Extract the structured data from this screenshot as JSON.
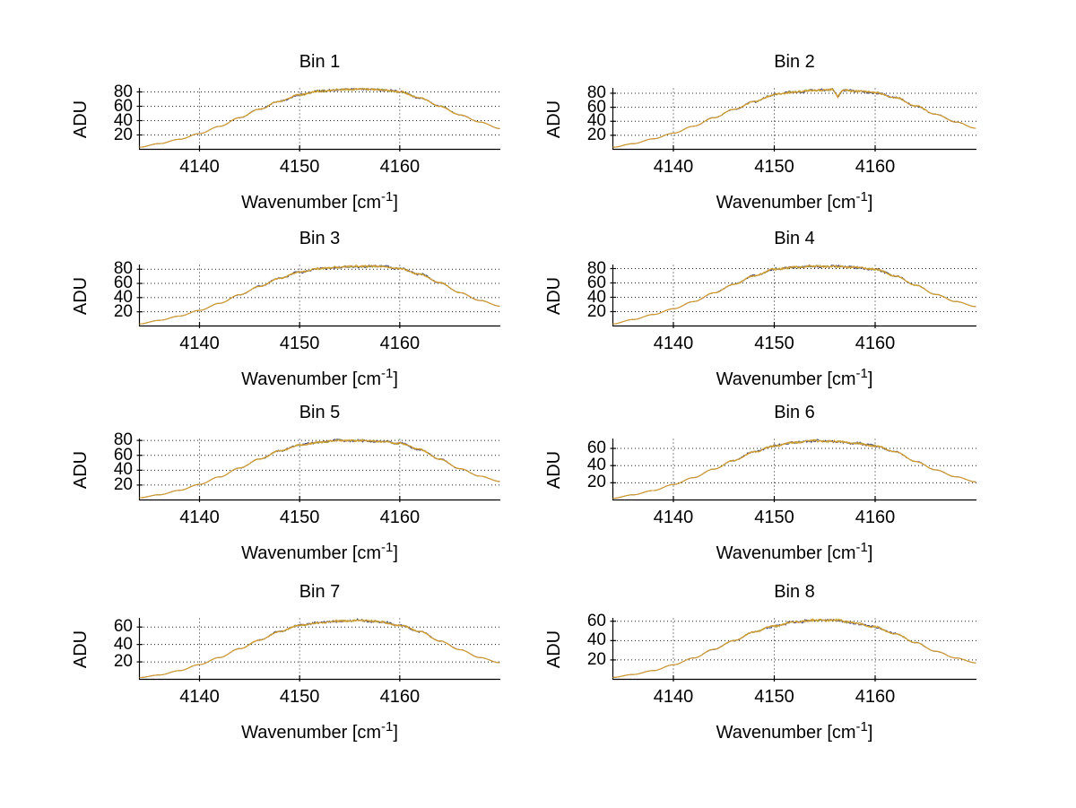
{
  "figure": {
    "background": "#ffffff",
    "axis_color": "#000000",
    "grid_color": "#1c1c1c",
    "text_color": "#000000",
    "series_colors": {
      "dark": "#3c3c78",
      "olive": "#b3a93a",
      "orange": "#d7992c"
    },
    "ylabel": "ADU",
    "xlabel_parts": {
      "pre": "Wavenumber [cm",
      "sup": "-1",
      "post": "]"
    }
  },
  "chart_data": [
    {
      "type": "line",
      "title": "Bin 1",
      "xlabel": "Wavenumber [cm^-1]",
      "ylabel": "ADU",
      "xlim": [
        4134,
        4170
      ],
      "ylim": [
        0,
        85
      ],
      "x_ticks": [
        4140,
        4150,
        4160
      ],
      "y_ticks": [
        20,
        40,
        60,
        80
      ],
      "grid": true,
      "x": [
        4134,
        4136,
        4138,
        4140,
        4142,
        4144,
        4146,
        4148,
        4150,
        4152,
        4154,
        4156,
        4158,
        4160,
        4162,
        4164,
        4166,
        4168,
        4170
      ],
      "y": [
        3,
        8,
        14,
        22,
        32,
        44,
        56,
        67,
        76,
        81,
        83,
        84,
        83,
        80,
        72,
        60,
        48,
        38,
        29
      ],
      "noise_amplitude": 1.6
    },
    {
      "type": "line",
      "title": "Bin 2",
      "xlabel": "Wavenumber [cm^-1]",
      "ylabel": "ADU",
      "xlim": [
        4134,
        4170
      ],
      "ylim": [
        0,
        87
      ],
      "x_ticks": [
        4140,
        4150,
        4160
      ],
      "y_ticks": [
        20,
        40,
        60,
        80
      ],
      "grid": true,
      "x": [
        4134,
        4136,
        4138,
        4140,
        4142,
        4144,
        4146,
        4148,
        4150,
        4152,
        4154,
        4156,
        4158,
        4160,
        4162,
        4164,
        4166,
        4168,
        4170
      ],
      "y": [
        3,
        8,
        15,
        23,
        33,
        45,
        57,
        68,
        78,
        82,
        84,
        85,
        83,
        81,
        74,
        62,
        50,
        39,
        30
      ],
      "spike": {
        "x": 4156.3,
        "depth": 10,
        "width": 0.5
      },
      "noise_amplitude": 1.7
    },
    {
      "type": "line",
      "title": "Bin 3",
      "xlabel": "Wavenumber [cm^-1]",
      "ylabel": "ADU",
      "xlim": [
        4134,
        4170
      ],
      "ylim": [
        0,
        86
      ],
      "x_ticks": [
        4140,
        4150,
        4160
      ],
      "y_ticks": [
        20,
        40,
        60,
        80
      ],
      "grid": true,
      "x": [
        4134,
        4136,
        4138,
        4140,
        4142,
        4144,
        4146,
        4148,
        4150,
        4152,
        4154,
        4156,
        4158,
        4160,
        4162,
        4164,
        4166,
        4168,
        4170
      ],
      "y": [
        3,
        8,
        14,
        22,
        32,
        44,
        56,
        67,
        76,
        81,
        83,
        84,
        84,
        81,
        73,
        61,
        47,
        36,
        28
      ],
      "noise_amplitude": 1.6
    },
    {
      "type": "line",
      "title": "Bin 4",
      "xlabel": "Wavenumber [cm^-1]",
      "ylabel": "ADU",
      "xlim": [
        4134,
        4170
      ],
      "ylim": [
        0,
        85
      ],
      "x_ticks": [
        4140,
        4150,
        4160
      ],
      "y_ticks": [
        20,
        40,
        60,
        80
      ],
      "grid": true,
      "x": [
        4134,
        4136,
        4138,
        4140,
        4142,
        4144,
        4146,
        4148,
        4150,
        4152,
        4154,
        4156,
        4158,
        4160,
        4162,
        4164,
        4166,
        4168,
        4170
      ],
      "y": [
        3,
        9,
        16,
        24,
        34,
        46,
        58,
        70,
        79,
        82,
        83,
        83,
        82,
        79,
        70,
        57,
        44,
        34,
        27
      ],
      "noise_amplitude": 1.6
    },
    {
      "type": "line",
      "title": "Bin 5",
      "xlabel": "Wavenumber [cm^-1]",
      "ylabel": "ADU",
      "xlim": [
        4134,
        4170
      ],
      "ylim": [
        0,
        82
      ],
      "x_ticks": [
        4140,
        4150,
        4160
      ],
      "y_ticks": [
        20,
        40,
        60,
        80
      ],
      "grid": true,
      "x": [
        4134,
        4136,
        4138,
        4140,
        4142,
        4144,
        4146,
        4148,
        4150,
        4152,
        4154,
        4156,
        4158,
        4160,
        4162,
        4164,
        4166,
        4168,
        4170
      ],
      "y": [
        3,
        7,
        13,
        21,
        31,
        43,
        55,
        66,
        74,
        78,
        80,
        80,
        79,
        76,
        68,
        55,
        42,
        32,
        25
      ],
      "noise_amplitude": 1.5
    },
    {
      "type": "line",
      "title": "Bin 6",
      "xlabel": "Wavenumber [cm^-1]",
      "ylabel": "ADU",
      "xlim": [
        4134,
        4170
      ],
      "ylim": [
        0,
        71
      ],
      "x_ticks": [
        4140,
        4150,
        4160
      ],
      "y_ticks": [
        20,
        40,
        60
      ],
      "grid": true,
      "x": [
        4134,
        4136,
        4138,
        4140,
        4142,
        4144,
        4146,
        4148,
        4150,
        4152,
        4154,
        4156,
        4158,
        4160,
        4162,
        4164,
        4166,
        4168,
        4170
      ],
      "y": [
        2,
        6,
        11,
        18,
        26,
        36,
        46,
        56,
        63,
        67,
        69,
        68,
        66,
        63,
        56,
        45,
        35,
        27,
        21
      ],
      "noise_amplitude": 1.4
    },
    {
      "type": "line",
      "title": "Bin 7",
      "xlabel": "Wavenumber [cm^-1]",
      "ylabel": "ADU",
      "xlim": [
        4134,
        4170
      ],
      "ylim": [
        0,
        70
      ],
      "x_ticks": [
        4140,
        4150,
        4160
      ],
      "y_ticks": [
        20,
        40,
        60
      ],
      "grid": true,
      "x": [
        4134,
        4136,
        4138,
        4140,
        4142,
        4144,
        4146,
        4148,
        4150,
        4152,
        4154,
        4156,
        4158,
        4160,
        4162,
        4164,
        4166,
        4168,
        4170
      ],
      "y": [
        2,
        5,
        10,
        17,
        25,
        35,
        45,
        55,
        62,
        65,
        67,
        68,
        66,
        62,
        55,
        44,
        34,
        25,
        19
      ],
      "noise_amplitude": 1.3
    },
    {
      "type": "line",
      "title": "Bin 8",
      "xlabel": "Wavenumber [cm^-1]",
      "ylabel": "ADU",
      "xlim": [
        4134,
        4170
      ],
      "ylim": [
        0,
        63
      ],
      "x_ticks": [
        4140,
        4150,
        4160
      ],
      "y_ticks": [
        20,
        40,
        60
      ],
      "grid": true,
      "x": [
        4134,
        4136,
        4138,
        4140,
        4142,
        4144,
        4146,
        4148,
        4150,
        4152,
        4154,
        4156,
        4158,
        4160,
        4162,
        4164,
        4166,
        4168,
        4170
      ],
      "y": [
        2,
        5,
        9,
        15,
        22,
        31,
        40,
        49,
        55,
        59,
        61,
        61,
        58,
        54,
        47,
        38,
        29,
        22,
        17
      ],
      "noise_amplitude": 1.3
    }
  ]
}
